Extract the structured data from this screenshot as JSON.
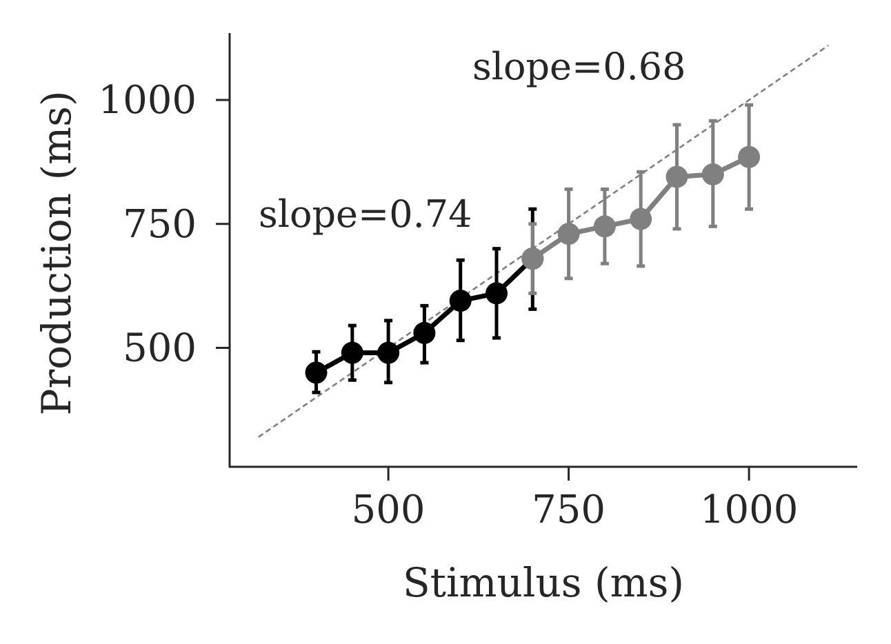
{
  "chart_data": {
    "type": "line",
    "xlabel": "Stimulus (ms)",
    "ylabel": "Production (ms)",
    "xlim": [
      280,
      1150
    ],
    "ylim": [
      260,
      1135
    ],
    "xticks": [
      500,
      750,
      1000
    ],
    "yticks": [
      500,
      750,
      1000
    ],
    "grid": false,
    "colors": {
      "series_1": "#000000",
      "series_2": "#808080",
      "identity": "#808080",
      "axis": "#262626"
    },
    "identity_line": {
      "x": [
        320,
        1110
      ],
      "y": [
        320,
        1110
      ],
      "style": "dashed"
    },
    "series": [
      {
        "x": [
          400,
          450,
          500,
          550,
          600,
          650,
          700
        ],
        "values": [
          450,
          490,
          490,
          530,
          595,
          610,
          680
        ],
        "err_low": [
          410,
          435,
          430,
          470,
          515,
          520,
          578
        ],
        "err_high": [
          492,
          545,
          555,
          585,
          677,
          700,
          780
        ]
      },
      {
        "x": [
          700,
          750,
          800,
          850,
          900,
          950,
          1000
        ],
        "values": [
          680,
          730,
          745,
          760,
          845,
          850,
          885
        ],
        "err_low": [
          610,
          640,
          670,
          665,
          740,
          745,
          780
        ],
        "err_high": [
          750,
          820,
          820,
          855,
          950,
          958,
          990
        ]
      }
    ],
    "annotations": [
      {
        "text": "slope=0.74",
        "x": 310,
        "y": 770
      },
      {
        "text": "slope=0.68",
        "x": 600,
        "y": 1070
      }
    ]
  }
}
